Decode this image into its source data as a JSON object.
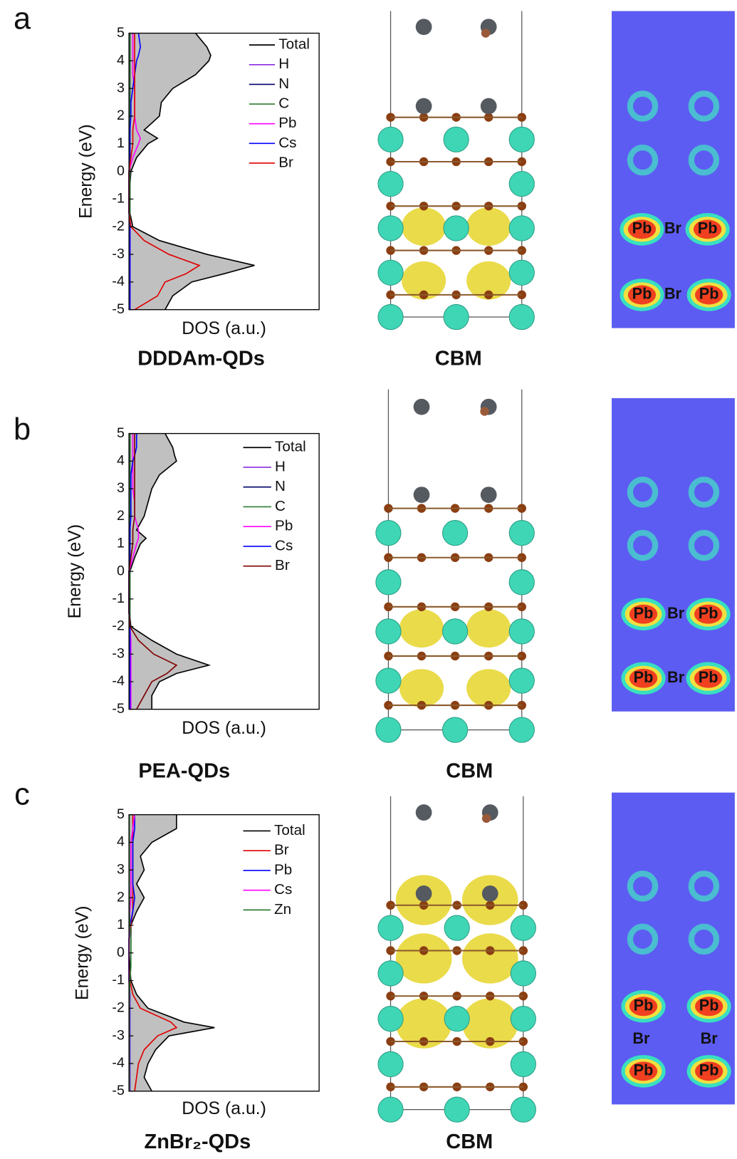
{
  "chart_data": [
    {
      "type": "line",
      "panel": "a",
      "title": "DDDAm-QDs",
      "xlabel": "DOS (a.u.)",
      "ylabel": "Energy (eV)",
      "structure_label": "CBM",
      "map_labels": [
        "Pb",
        "Br",
        "Pb",
        "Pb",
        "Br",
        "Pb"
      ],
      "y": [
        -5,
        -4.5,
        -4,
        -3.7,
        -3.4,
        -3,
        -2.5,
        -2,
        -1.5,
        -1,
        -0.5,
        0,
        0.5,
        1,
        1.2,
        1.5,
        2,
        2.5,
        3,
        3.5,
        4,
        4.2,
        4.5,
        5
      ],
      "ylim": [
        -5,
        5
      ],
      "yticks": [
        -5,
        -4,
        -3,
        -2,
        -1,
        0,
        1,
        2,
        3,
        4,
        5
      ],
      "xlim": [
        0,
        10
      ],
      "fill": "#c0c0c0",
      "series": [
        {
          "name": "Total",
          "color": "#000000",
          "values": [
            1.9,
            2.3,
            3.3,
            5.0,
            6.6,
            4.1,
            1.6,
            0.2,
            0.05,
            0.05,
            0.05,
            0.1,
            0.4,
            1.0,
            1.5,
            0.8,
            1.6,
            1.7,
            2.3,
            3.5,
            4.2,
            4.3,
            4.1,
            3.5
          ]
        },
        {
          "name": "H",
          "color": "#8a2be2",
          "values": [
            0.05,
            0.05,
            0.05,
            0.05,
            0.05,
            0.05,
            0.05,
            0.05,
            0.05,
            0.05,
            0.05,
            0.05,
            0.05,
            0.05,
            0.05,
            0.05,
            0.05,
            0.05,
            0.05,
            0.05,
            0.05,
            0.05,
            0.05,
            0.05
          ]
        },
        {
          "name": "N",
          "color": "#00006e",
          "values": [
            0.05,
            0.05,
            0.05,
            0.05,
            0.05,
            0.05,
            0.05,
            0.05,
            0.05,
            0.05,
            0.05,
            0.05,
            0.05,
            0.05,
            0.05,
            0.05,
            0.05,
            0.05,
            0.05,
            0.05,
            0.05,
            0.05,
            0.05,
            0.05
          ]
        },
        {
          "name": "C",
          "color": "#2e7d32",
          "values": [
            0.05,
            0.05,
            0.05,
            0.05,
            0.05,
            0.05,
            0.05,
            0.05,
            0.05,
            0.05,
            0.05,
            0.05,
            0.05,
            0.05,
            0.05,
            0.05,
            0.05,
            0.05,
            0.05,
            0.05,
            0.05,
            0.05,
            0.05,
            0.05
          ]
        },
        {
          "name": "Pb",
          "color": "#ff00ff",
          "values": [
            0.05,
            0.05,
            0.05,
            0.05,
            0.05,
            0.05,
            0.05,
            0.05,
            0,
            0,
            0,
            0,
            0.2,
            0.5,
            0.6,
            0.4,
            0.3,
            0.3,
            0.3,
            0.2,
            0.2,
            0.2,
            0.2,
            0.2
          ]
        },
        {
          "name": "Cs",
          "color": "#0000ff",
          "values": [
            0.05,
            0.05,
            0.05,
            0.05,
            0.05,
            0.05,
            0.05,
            0.05,
            0,
            0,
            0,
            0,
            0.05,
            0.05,
            0.05,
            0.05,
            0.1,
            0.1,
            0.2,
            0.3,
            0.4,
            0.5,
            0.6,
            0.5
          ]
        },
        {
          "name": "Br",
          "color": "#e00000",
          "values": [
            0.3,
            1.5,
            1.9,
            3.0,
            3.7,
            2.1,
            0.8,
            0.1,
            0,
            0,
            0,
            0,
            0.1,
            0.2,
            0.2,
            0.2,
            0.3,
            0.3,
            0.3,
            0.3,
            0.3,
            0.3,
            0.3,
            0.3
          ]
        }
      ]
    },
    {
      "type": "line",
      "panel": "b",
      "title": "PEA-QDs",
      "xlabel": "DOS (a.u.)",
      "ylabel": "Energy (eV)",
      "structure_label": "CBM",
      "map_labels": [
        "Pb",
        "Br",
        "Pb",
        "Pb",
        "Br",
        "Pb"
      ],
      "y": [
        -5,
        -4.5,
        -4,
        -3.7,
        -3.4,
        -3,
        -2.5,
        -2,
        -1.5,
        -1,
        -0.5,
        0,
        0.5,
        1,
        1.2,
        1.5,
        2,
        2.5,
        3,
        3.5,
        4,
        4.2,
        4.5,
        5
      ],
      "ylim": [
        -5,
        5
      ],
      "yticks": [
        -5,
        -4,
        -3,
        -2,
        -1,
        0,
        1,
        2,
        3,
        4,
        5
      ],
      "xlim": [
        0,
        10
      ],
      "fill": "#c0c0c0",
      "series": [
        {
          "name": "Total",
          "color": "#000000",
          "values": [
            1.2,
            1.2,
            1.6,
            2.5,
            4.2,
            2.5,
            1.2,
            0.1,
            0.03,
            0.03,
            0.03,
            0.05,
            0.3,
            0.6,
            0.9,
            0.4,
            0.8,
            1.0,
            1.2,
            1.6,
            2.5,
            2.4,
            2.3,
            1.9
          ]
        },
        {
          "name": "H",
          "color": "#8a2be2",
          "values": [
            0.05,
            0.05,
            0.05,
            0.05,
            0.05,
            0.05,
            0.05,
            0.05,
            0.05,
            0.05,
            0.05,
            0.05,
            0.05,
            0.05,
            0.05,
            0.05,
            0.05,
            0.05,
            0.05,
            0.05,
            0.05,
            0.05,
            0.05,
            0.05
          ]
        },
        {
          "name": "N",
          "color": "#00006e",
          "values": [
            0.05,
            0.05,
            0.05,
            0.05,
            0.05,
            0.05,
            0.05,
            0.05,
            0.05,
            0.05,
            0.05,
            0.05,
            0.05,
            0.05,
            0.05,
            0.05,
            0.05,
            0.05,
            0.05,
            0.05,
            0.05,
            0.05,
            0.05,
            0.05
          ]
        },
        {
          "name": "C",
          "color": "#2e7d32",
          "values": [
            0.05,
            0.05,
            0.05,
            0.05,
            0.05,
            0.05,
            0.05,
            0.05,
            0.05,
            0.05,
            0.05,
            0.05,
            0.05,
            0.05,
            0.05,
            0.05,
            0.05,
            0.05,
            0.05,
            0.05,
            0.05,
            0.05,
            0.05,
            0.05
          ]
        },
        {
          "name": "Pb",
          "color": "#ff00ff",
          "values": [
            0.1,
            0.1,
            0.1,
            0.1,
            0.1,
            0.1,
            0.1,
            0.05,
            0,
            0,
            0,
            0,
            0.2,
            0.4,
            0.5,
            0.5,
            0.3,
            0.3,
            0.2,
            0.2,
            0.2,
            0.2,
            0.2,
            0.2
          ]
        },
        {
          "name": "Cs",
          "color": "#0000ff",
          "values": [
            0.05,
            0.05,
            0.05,
            0.05,
            0.05,
            0.05,
            0.05,
            0.05,
            0,
            0,
            0,
            0,
            0.05,
            0.05,
            0.05,
            0.05,
            0.1,
            0.1,
            0.1,
            0.1,
            0.2,
            0.3,
            0.4,
            0.4
          ]
        },
        {
          "name": "Br",
          "color": "#800000",
          "values": [
            0.4,
            0.8,
            1.2,
            2.0,
            2.5,
            1.3,
            0.5,
            0.05,
            0,
            0,
            0,
            0,
            0.1,
            0.2,
            0.2,
            0.2,
            0.3,
            0.3,
            0.3,
            0.3,
            0.3,
            0.3,
            0.3,
            0.3
          ]
        }
      ]
    },
    {
      "type": "line",
      "panel": "c",
      "title": "ZnBr₂-QDs",
      "xlabel": "DOS (a.u.)",
      "ylabel": "Energy (eV)",
      "structure_label": "CBM",
      "map_labels": [
        "Pb",
        "Pb",
        "Br",
        "Br",
        "Pb",
        "Pb"
      ],
      "y": [
        -5,
        -4.5,
        -4,
        -3.5,
        -3,
        -2.7,
        -2.5,
        -2,
        -1.5,
        -1,
        -0.5,
        0,
        0.5,
        1,
        1.5,
        2,
        2.5,
        3,
        3.5,
        4,
        4.5,
        5
      ],
      "ylim": [
        -5,
        5
      ],
      "yticks": [
        -5,
        -4,
        -3,
        -2,
        -1,
        0,
        1,
        2,
        3,
        4,
        5
      ],
      "xlim": [
        0,
        10
      ],
      "fill": "#c0c0c0",
      "series": [
        {
          "name": "Total",
          "color": "#000000",
          "values": [
            1.2,
            0.8,
            1.0,
            1.4,
            2.1,
            4.5,
            2.9,
            1.0,
            0.4,
            0.1,
            0.05,
            0.1,
            0.1,
            0.1,
            0.4,
            0.8,
            0.4,
            0.8,
            0.6,
            1.2,
            2.5,
            2.5
          ]
        },
        {
          "name": "Br",
          "color": "#e00000",
          "values": [
            0.3,
            0.4,
            0.5,
            0.8,
            1.5,
            2.5,
            2.2,
            0.6,
            0.2,
            0.05,
            0,
            0,
            0,
            0.1,
            0.2,
            0.2,
            0.2,
            0.2,
            0.2,
            0.2,
            0.2,
            0.2
          ]
        },
        {
          "name": "Pb",
          "color": "#0000ff",
          "values": [
            0.05,
            0.05,
            0.05,
            0.05,
            0.05,
            0.05,
            0.05,
            0.05,
            0.05,
            0,
            0,
            0,
            0,
            0.05,
            0.2,
            0.3,
            0.2,
            0.2,
            0.2,
            0.2,
            0.3,
            0.3
          ]
        },
        {
          "name": "Cs",
          "color": "#ff00ff",
          "values": [
            0.03,
            0.03,
            0.03,
            0.03,
            0.03,
            0.03,
            0.03,
            0.03,
            0.03,
            0,
            0,
            0,
            0,
            0.03,
            0.05,
            0.1,
            0.1,
            0.1,
            0.1,
            0.1,
            0.2,
            0.3
          ]
        },
        {
          "name": "Zn",
          "color": "#2e7d32",
          "values": [
            0.02,
            0.02,
            0.02,
            0.02,
            0.02,
            0.02,
            0.02,
            0.02,
            0.02,
            0.05,
            0.1,
            0.1,
            0.1,
            0.05,
            0.02,
            0.02,
            0.02,
            0.02,
            0.02,
            0.02,
            0.02,
            0.02
          ]
        }
      ]
    }
  ]
}
